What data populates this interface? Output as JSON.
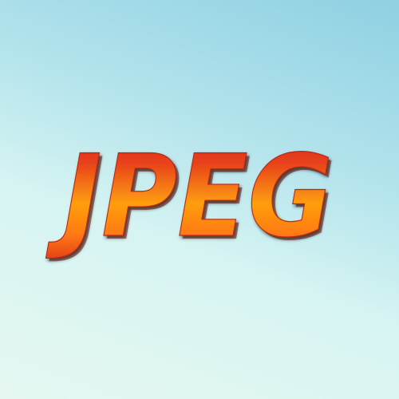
{
  "logo": {
    "text": "JPEG"
  },
  "colors": {
    "background_top": "#8fd0e2",
    "background_bottom": "#e6f7f1",
    "text_top": "#d6231e",
    "text_middle": "#ff9e10",
    "text_bottom": "#e23a1c",
    "text_shadow": "#8a1a0a"
  }
}
